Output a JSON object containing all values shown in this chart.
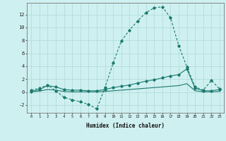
{
  "title": "",
  "xlabel": "Humidex (Indice chaleur)",
  "ylabel": "",
  "background_color": "#cff0f0",
  "grid_color": "#aed8d8",
  "line_color": "#1a7a6e",
  "xlim": [
    -0.5,
    23.5
  ],
  "ylim": [
    -3.2,
    13.8
  ],
  "xticks": [
    0,
    1,
    2,
    3,
    4,
    5,
    6,
    7,
    8,
    9,
    10,
    11,
    12,
    13,
    14,
    15,
    16,
    17,
    18,
    19,
    20,
    21,
    22,
    23
  ],
  "yticks": [
    -2,
    0,
    2,
    4,
    6,
    8,
    10,
    12
  ],
  "line1_x": [
    0,
    1,
    2,
    3,
    4,
    5,
    6,
    7,
    8,
    9,
    10,
    11,
    12,
    13,
    14,
    15,
    16,
    17,
    18,
    19,
    20,
    21,
    22,
    23
  ],
  "line1_y": [
    0.3,
    0.6,
    1.1,
    0.2,
    -0.8,
    -1.2,
    -1.5,
    -1.9,
    -2.6,
    0.7,
    4.5,
    7.9,
    9.6,
    11.0,
    12.3,
    13.0,
    13.2,
    11.5,
    7.2,
    3.9,
    0.8,
    0.3,
    1.8,
    0.5
  ],
  "line2_x": [
    0,
    1,
    2,
    3,
    4,
    5,
    6,
    7,
    8,
    9,
    10,
    11,
    12,
    13,
    14,
    15,
    16,
    17,
    18,
    19,
    20,
    21,
    22,
    23
  ],
  "line2_y": [
    0.1,
    0.4,
    1.0,
    0.8,
    0.4,
    0.3,
    0.3,
    0.2,
    0.2,
    0.4,
    0.7,
    0.9,
    1.1,
    1.4,
    1.7,
    1.9,
    2.2,
    2.5,
    2.7,
    3.6,
    0.6,
    0.2,
    0.2,
    0.4
  ],
  "line3_x": [
    0,
    1,
    2,
    3,
    4,
    5,
    6,
    7,
    8,
    9,
    10,
    11,
    12,
    13,
    14,
    15,
    16,
    17,
    18,
    19,
    20,
    21,
    22,
    23
  ],
  "line3_y": [
    0.05,
    0.15,
    0.4,
    0.3,
    0.1,
    0.05,
    0.05,
    0.05,
    0.05,
    0.1,
    0.2,
    0.3,
    0.4,
    0.5,
    0.6,
    0.7,
    0.8,
    0.9,
    1.0,
    1.3,
    0.2,
    0.05,
    0.05,
    0.1
  ]
}
